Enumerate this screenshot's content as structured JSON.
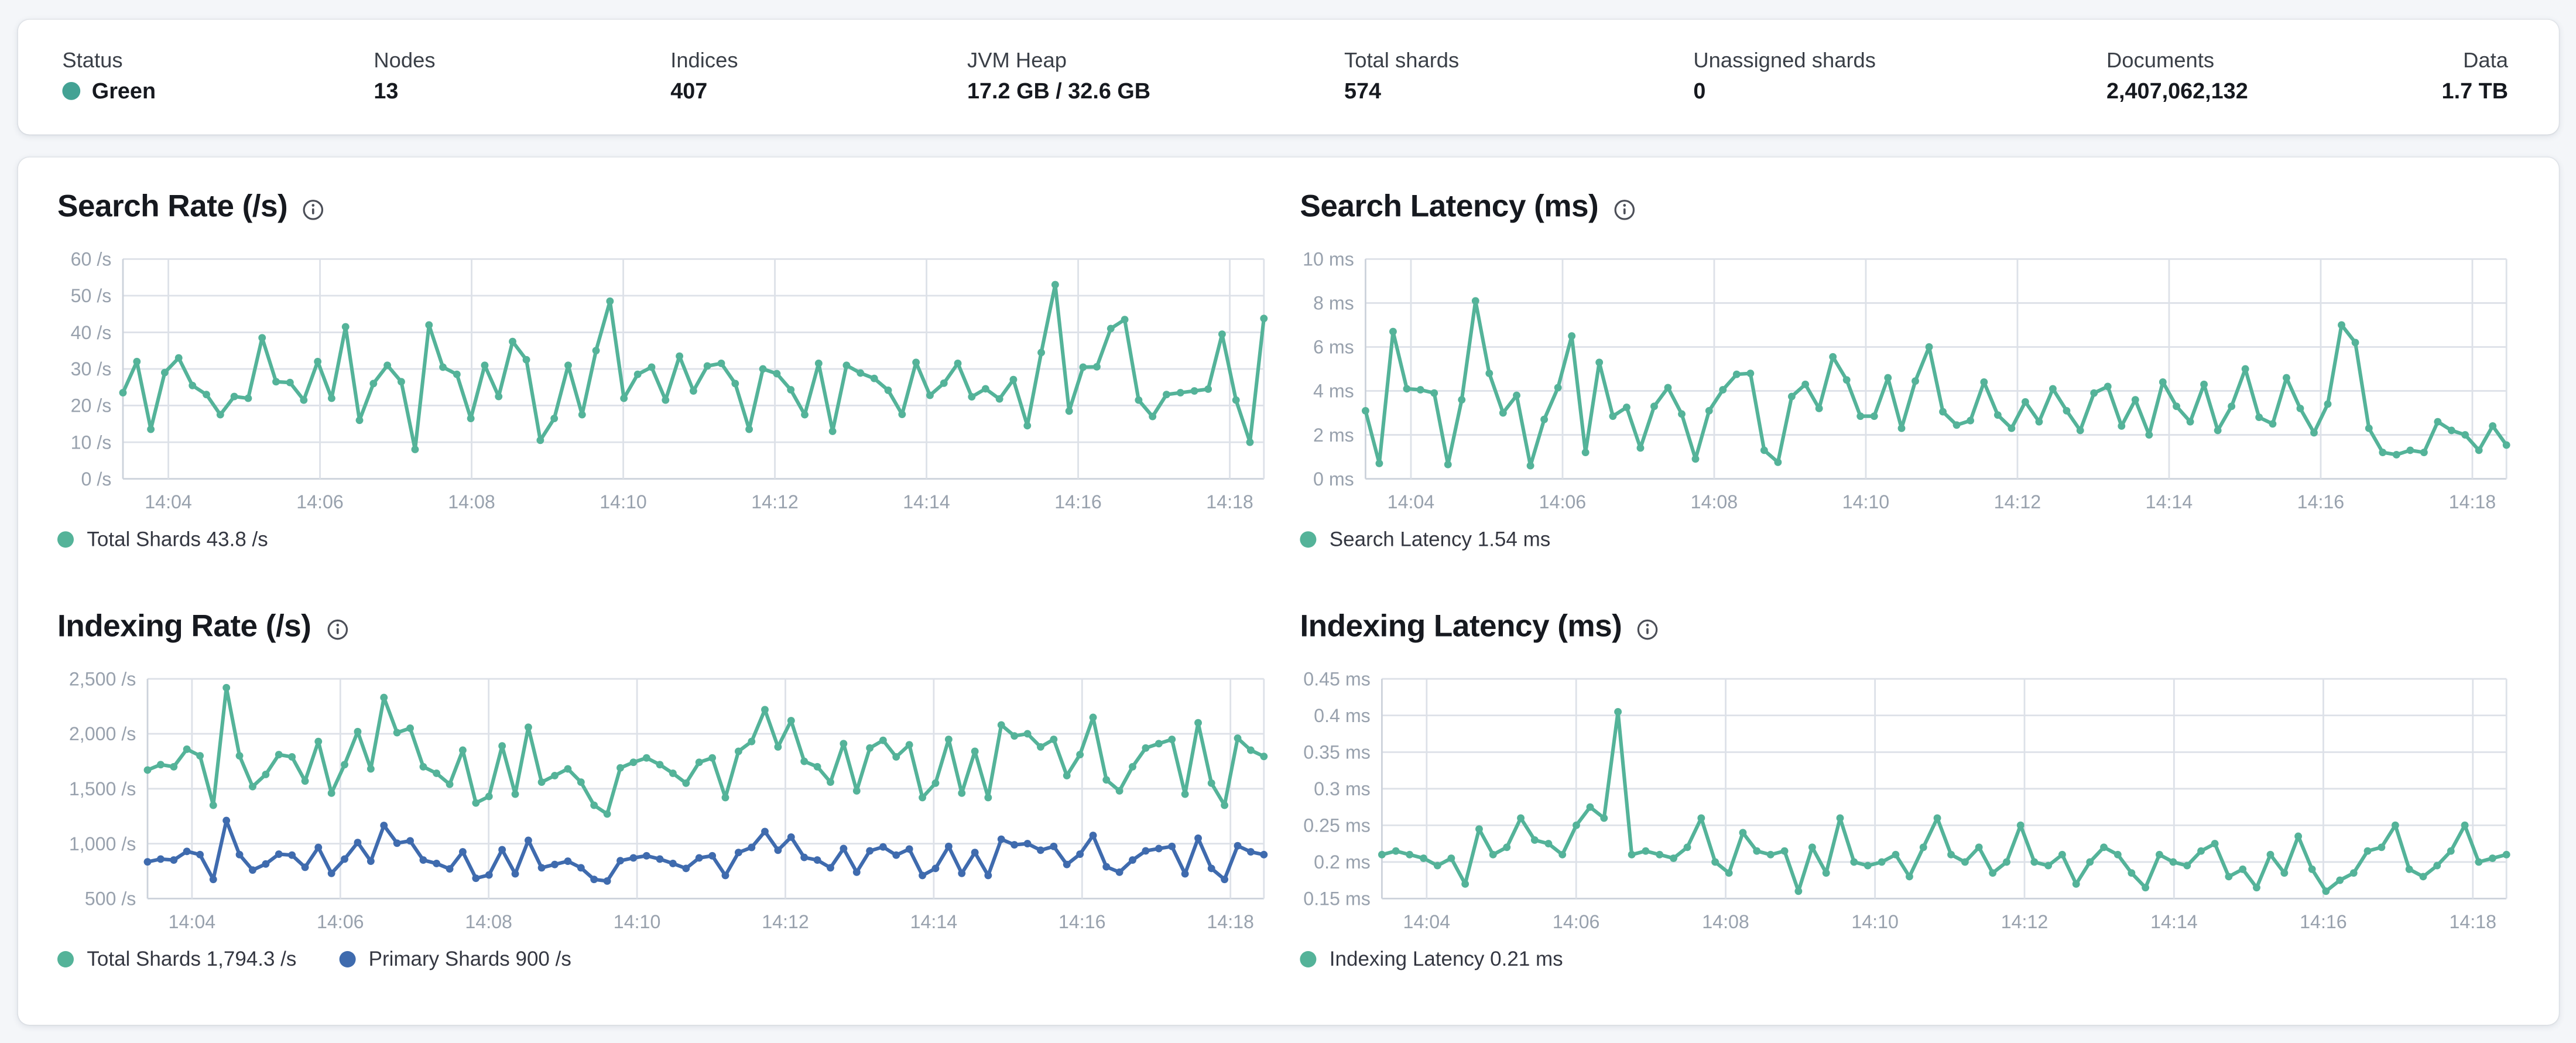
{
  "colors": {
    "status_green_dot": "#43a294",
    "teal_series": "#54b399",
    "blue_series": "#3f6bae",
    "page_background": "#f4f6f9"
  },
  "status_bar": {
    "stats": [
      {
        "label": "Status",
        "value": "Green"
      },
      {
        "label": "Nodes",
        "value": "13"
      },
      {
        "label": "Indices",
        "value": "407"
      },
      {
        "label": "JVM Heap",
        "value": "17.2 GB / 32.6 GB"
      },
      {
        "label": "Total shards",
        "value": "574"
      },
      {
        "label": "Unassigned shards",
        "value": "0"
      },
      {
        "label": "Documents",
        "value": "2,407,062,132"
      },
      {
        "label": "Data",
        "value": "1.7 TB"
      }
    ]
  },
  "chart_data": [
    {
      "type": "line",
      "title": "Search Rate (/s)",
      "ylabel": "/s",
      "ylim": [
        0,
        60
      ],
      "grid": true,
      "legend_position": "bottom",
      "y_ticks": [
        {
          "v": 60,
          "label": "60 /s"
        },
        {
          "v": 50,
          "label": "50 /s"
        },
        {
          "v": 40,
          "label": "40 /s"
        },
        {
          "v": 30,
          "label": "30 /s"
        },
        {
          "v": 20,
          "label": "20 /s"
        },
        {
          "v": 10,
          "label": "10 /s"
        },
        {
          "v": 0,
          "label": "0 /s"
        }
      ],
      "t_range": [
        203.4,
        218.45
      ],
      "x_ticks": [
        {
          "t": 204,
          "label": "14:04"
        },
        {
          "t": 206,
          "label": "14:06"
        },
        {
          "t": 208,
          "label": "14:08"
        },
        {
          "t": 210,
          "label": "14:10"
        },
        {
          "t": 212,
          "label": "14:12"
        },
        {
          "t": 214,
          "label": "14:14"
        },
        {
          "t": 216,
          "label": "14:16"
        },
        {
          "t": 218,
          "label": "14:18"
        }
      ],
      "series": [
        {
          "name": "Total Shards",
          "legend": "Total Shards 43.8 /s",
          "color": "#54b399",
          "values": [
            23.5,
            32,
            13.5,
            29,
            33,
            25.5,
            23,
            17.5,
            22.5,
            22,
            38.5,
            26.5,
            26.3,
            21.5,
            32,
            22,
            41.5,
            16,
            26,
            31,
            26.5,
            8,
            42,
            30.5,
            28.5,
            16.5,
            31,
            22.5,
            37.5,
            32.5,
            10.5,
            16.5,
            31,
            17.5,
            35,
            48.5,
            22,
            28.5,
            30.5,
            21.5,
            33.5,
            24,
            30.8,
            31.5,
            26,
            13.5,
            30,
            28.7,
            24.3,
            17.5,
            31.5,
            13,
            31,
            28.9,
            27.4,
            24.2,
            17.6,
            31.8,
            22.8,
            26.1,
            31.5,
            22.4,
            24.6,
            21.8,
            27.1,
            14.5,
            34.5,
            53,
            18.5,
            30.5,
            30.6,
            41,
            43.5,
            21.5,
            17,
            23,
            23.5,
            24,
            24.5,
            39.5,
            21.5,
            10,
            43.8
          ]
        }
      ]
    },
    {
      "type": "line",
      "title": "Search Latency (ms)",
      "ylabel": "ms",
      "ylim": [
        0,
        10
      ],
      "grid": true,
      "legend_position": "bottom",
      "y_ticks": [
        {
          "v": 10,
          "label": "10 ms"
        },
        {
          "v": 8,
          "label": "8 ms"
        },
        {
          "v": 6,
          "label": "6 ms"
        },
        {
          "v": 4,
          "label": "4 ms"
        },
        {
          "v": 2,
          "label": "2 ms"
        },
        {
          "v": 0,
          "label": "0 ms"
        }
      ],
      "t_range": [
        203.4,
        218.45
      ],
      "x_ticks": [
        {
          "t": 204,
          "label": "14:04"
        },
        {
          "t": 206,
          "label": "14:06"
        },
        {
          "t": 208,
          "label": "14:08"
        },
        {
          "t": 210,
          "label": "14:10"
        },
        {
          "t": 212,
          "label": "14:12"
        },
        {
          "t": 214,
          "label": "14:14"
        },
        {
          "t": 216,
          "label": "14:16"
        },
        {
          "t": 218,
          "label": "14:18"
        }
      ],
      "series": [
        {
          "name": "Search Latency",
          "legend": "Search Latency 1.54 ms",
          "color": "#54b399",
          "values": [
            3.1,
            0.7,
            6.7,
            4.1,
            4.05,
            3.9,
            0.65,
            3.6,
            8.1,
            4.8,
            3.0,
            3.8,
            0.6,
            2.7,
            4.15,
            6.5,
            1.2,
            5.3,
            2.85,
            3.25,
            1.4,
            3.3,
            4.15,
            2.95,
            0.9,
            3.1,
            4.05,
            4.75,
            4.8,
            1.3,
            0.75,
            3.75,
            4.3,
            3.2,
            5.55,
            4.5,
            2.85,
            2.85,
            4.6,
            2.3,
            4.45,
            6.0,
            3.05,
            2.45,
            2.65,
            4.4,
            2.9,
            2.3,
            3.5,
            2.6,
            4.1,
            3.1,
            2.2,
            3.9,
            4.2,
            2.4,
            3.6,
            2.0,
            4.4,
            3.3,
            2.6,
            4.3,
            2.2,
            3.3,
            5.0,
            2.8,
            2.5,
            4.6,
            3.2,
            2.1,
            3.4,
            7.0,
            6.2,
            2.3,
            1.2,
            1.1,
            1.3,
            1.2,
            2.6,
            2.2,
            2.0,
            1.3,
            2.4,
            1.54
          ]
        }
      ]
    },
    {
      "type": "line",
      "title": "Indexing Rate (/s)",
      "ylabel": "/s",
      "ylim": [
        500,
        2500
      ],
      "grid": true,
      "legend_position": "bottom",
      "y_ticks": [
        {
          "v": 2500,
          "label": "2,500 /s"
        },
        {
          "v": 2000,
          "label": "2,000 /s"
        },
        {
          "v": 1500,
          "label": "1,500 /s"
        },
        {
          "v": 1000,
          "label": "1,000 /s"
        },
        {
          "v": 500,
          "label": "500 /s"
        }
      ],
      "t_range": [
        203.4,
        218.45
      ],
      "x_ticks": [
        {
          "t": 204,
          "label": "14:04"
        },
        {
          "t": 206,
          "label": "14:06"
        },
        {
          "t": 208,
          "label": "14:08"
        },
        {
          "t": 210,
          "label": "14:10"
        },
        {
          "t": 212,
          "label": "14:12"
        },
        {
          "t": 214,
          "label": "14:14"
        },
        {
          "t": 216,
          "label": "14:16"
        },
        {
          "t": 218,
          "label": "14:18"
        }
      ],
      "series": [
        {
          "name": "Total Shards",
          "legend": "Total Shards 1,794.3 /s",
          "color": "#54b399",
          "values": [
            1670,
            1720,
            1700,
            1860,
            1800,
            1350,
            2420,
            1800,
            1520,
            1630,
            1810,
            1790,
            1570,
            1930,
            1460,
            1720,
            2020,
            1680,
            2330,
            2010,
            2050,
            1700,
            1640,
            1540,
            1850,
            1370,
            1430,
            1890,
            1450,
            2060,
            1560,
            1620,
            1680,
            1560,
            1350,
            1270,
            1690,
            1740,
            1780,
            1720,
            1640,
            1550,
            1740,
            1780,
            1420,
            1840,
            1930,
            2220,
            1880,
            2120,
            1750,
            1700,
            1560,
            1910,
            1480,
            1870,
            1940,
            1790,
            1900,
            1420,
            1550,
            1950,
            1460,
            1840,
            1420,
            2080,
            1980,
            2000,
            1880,
            1950,
            1620,
            1810,
            2150,
            1580,
            1480,
            1700,
            1870,
            1910,
            1950,
            1450,
            2100,
            1550,
            1350,
            1960,
            1850,
            1794.3
          ]
        },
        {
          "name": "Primary Shards",
          "legend": "Primary Shards 900 /s",
          "color": "#3f6bae",
          "values": [
            835,
            860,
            850,
            930,
            900,
            675,
            1210,
            900,
            760,
            815,
            905,
            895,
            785,
            965,
            730,
            860,
            1010,
            840,
            1165,
            1005,
            1025,
            850,
            820,
            770,
            925,
            685,
            715,
            945,
            725,
            1030,
            780,
            810,
            840,
            780,
            675,
            660,
            845,
            870,
            890,
            860,
            820,
            775,
            870,
            890,
            710,
            920,
            965,
            1110,
            940,
            1060,
            875,
            850,
            780,
            955,
            740,
            935,
            970,
            895,
            950,
            710,
            775,
            975,
            730,
            920,
            710,
            1040,
            990,
            1000,
            940,
            975,
            810,
            905,
            1075,
            790,
            740,
            850,
            935,
            955,
            975,
            725,
            1050,
            775,
            675,
            980,
            925,
            900
          ]
        }
      ]
    },
    {
      "type": "line",
      "title": "Indexing Latency (ms)",
      "ylabel": "ms",
      "ylim": [
        0.15,
        0.45
      ],
      "grid": true,
      "legend_position": "bottom",
      "y_ticks": [
        {
          "v": 0.45,
          "label": "0.45 ms"
        },
        {
          "v": 0.4,
          "label": "0.4 ms"
        },
        {
          "v": 0.35,
          "label": "0.35 ms"
        },
        {
          "v": 0.3,
          "label": "0.3 ms"
        },
        {
          "v": 0.25,
          "label": "0.25 ms"
        },
        {
          "v": 0.2,
          "label": "0.2 ms"
        },
        {
          "v": 0.15,
          "label": "0.15 ms"
        }
      ],
      "t_range": [
        203.4,
        218.45
      ],
      "x_ticks": [
        {
          "t": 204,
          "label": "14:04"
        },
        {
          "t": 206,
          "label": "14:06"
        },
        {
          "t": 208,
          "label": "14:08"
        },
        {
          "t": 210,
          "label": "14:10"
        },
        {
          "t": 212,
          "label": "14:12"
        },
        {
          "t": 214,
          "label": "14:14"
        },
        {
          "t": 216,
          "label": "14:16"
        },
        {
          "t": 218,
          "label": "14:18"
        }
      ],
      "series": [
        {
          "name": "Indexing Latency",
          "legend": "Indexing Latency 0.21 ms",
          "color": "#54b399",
          "values": [
            0.21,
            0.215,
            0.21,
            0.205,
            0.195,
            0.205,
            0.17,
            0.245,
            0.21,
            0.22,
            0.26,
            0.23,
            0.225,
            0.21,
            0.25,
            0.275,
            0.26,
            0.405,
            0.21,
            0.215,
            0.21,
            0.205,
            0.22,
            0.26,
            0.2,
            0.185,
            0.24,
            0.215,
            0.21,
            0.215,
            0.16,
            0.22,
            0.185,
            0.26,
            0.2,
            0.195,
            0.2,
            0.21,
            0.18,
            0.22,
            0.26,
            0.21,
            0.2,
            0.22,
            0.185,
            0.2,
            0.25,
            0.2,
            0.195,
            0.21,
            0.17,
            0.2,
            0.22,
            0.21,
            0.185,
            0.165,
            0.21,
            0.2,
            0.195,
            0.215,
            0.225,
            0.18,
            0.19,
            0.165,
            0.21,
            0.185,
            0.235,
            0.19,
            0.16,
            0.175,
            0.185,
            0.215,
            0.22,
            0.25,
            0.19,
            0.18,
            0.195,
            0.215,
            0.25,
            0.2,
            0.205,
            0.21
          ]
        }
      ]
    }
  ]
}
